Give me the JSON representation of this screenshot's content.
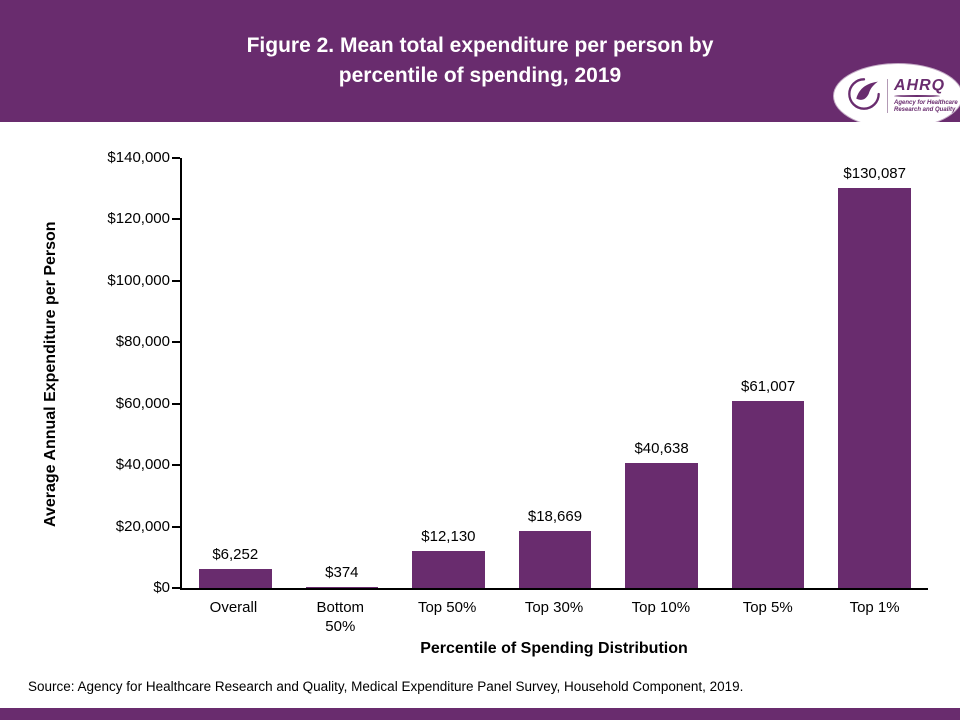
{
  "colors": {
    "purple": "#692c6e",
    "text": "#000000",
    "background": "#ffffff"
  },
  "header": {
    "title_line1": "Figure 2. Mean total expenditure per person by",
    "title_line2": "percentile of spending, 2019"
  },
  "logo": {
    "name": "AHRQ",
    "tagline_line1": "Agency for Healthcare",
    "tagline_line2": "Research and Quality"
  },
  "chart_data": {
    "type": "bar",
    "title": "Figure 2. Mean total expenditure per person by percentile of spending, 2019",
    "categories": [
      "Overall",
      "Bottom\n50%",
      "Top 50%",
      "Top 30%",
      "Top 10%",
      "Top 5%",
      "Top 1%"
    ],
    "values": [
      6252,
      374,
      12130,
      18669,
      40638,
      61007,
      130087
    ],
    "value_labels": [
      "$6,252",
      "$374",
      "$12,130",
      "$18,669",
      "$40,638",
      "$61,007",
      "$130,087"
    ],
    "xlabel": "Percentile of Spending Distribution",
    "ylabel": "Average Annual Expenditure per Person",
    "ylim": [
      0,
      140000
    ],
    "ytick_step": 20000,
    "ytick_labels": [
      "$0",
      "$20,000",
      "$40,000",
      "$60,000",
      "$80,000",
      "$100,000",
      "$120,000",
      "$140,000"
    ],
    "bar_color": "#692c6e",
    "grid": false,
    "legend": false
  },
  "footer": {
    "source": "Source: Agency for Healthcare Research and Quality, Medical Expenditure Panel Survey, Household Component, 2019."
  }
}
